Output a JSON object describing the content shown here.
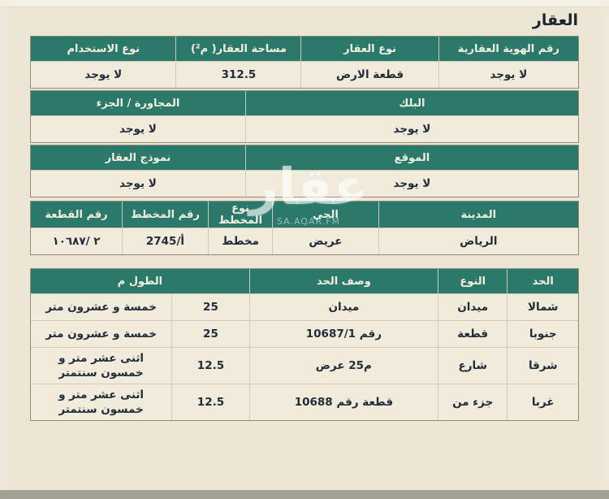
{
  "page": {
    "title": "العقار"
  },
  "watermark": {
    "text": "عقار",
    "subtext": "SA.AQAR.FM"
  },
  "colors": {
    "header_teal": "#2a796b",
    "row_cream": "#f0ebdb",
    "page_bg": "#ece7d5",
    "header_text": "#f3efdf",
    "body_text": "#232c3a"
  },
  "property_table": {
    "headers": [
      "رقم الهوية العقارية",
      "نوع العقار",
      "مساحة العقار( م²)",
      "نوع الاستخدام"
    ],
    "values": [
      "لا يوجد",
      "قطعة الارض",
      "312.5",
      "لا يوجد"
    ]
  },
  "block_table": {
    "headers": [
      "البلك",
      "المجاورة / الجزء"
    ],
    "values": [
      "لا يوجد",
      "لا يوجد"
    ]
  },
  "location_table": {
    "headers": [
      "الموقع",
      "نموذج العقار"
    ],
    "values": [
      "لا يوجد",
      "لا يوجد"
    ]
  },
  "plan_table": {
    "headers": [
      "المدينة",
      "الحي",
      "نوع المخطط",
      "رقم المخطط",
      "رقم القطعة"
    ],
    "values": [
      "الرياض",
      "عريض",
      "مخطط",
      "2745/أ",
      "٢ /١٠٦٨٧"
    ]
  },
  "borders_table": {
    "headers": {
      "side": "الحد",
      "type": "النوع",
      "desc": "وصف الحد",
      "length": "الطول م"
    },
    "rows": [
      {
        "side": "شمالا",
        "type": "ميدان",
        "desc": "ميدان",
        "length_num": "25",
        "length_text": "خمسة و عشرون متر"
      },
      {
        "side": "جنوبا",
        "type": "قطعة",
        "desc": "رقم 10687/1",
        "length_num": "25",
        "length_text": "خمسة و عشرون متر"
      },
      {
        "side": "شرقا",
        "type": "شارع",
        "desc_parts": [
          "عرض",
          "25م"
        ],
        "length_num": "12.5",
        "length_text": "اثنى عشر متر و خمسون سنتمتر"
      },
      {
        "side": "غربا",
        "type": "جزء من",
        "desc": "قطعة رقم 10688",
        "length_num": "12.5",
        "length_text": "اثنى عشر متر و خمسون سنتمتر"
      }
    ]
  }
}
